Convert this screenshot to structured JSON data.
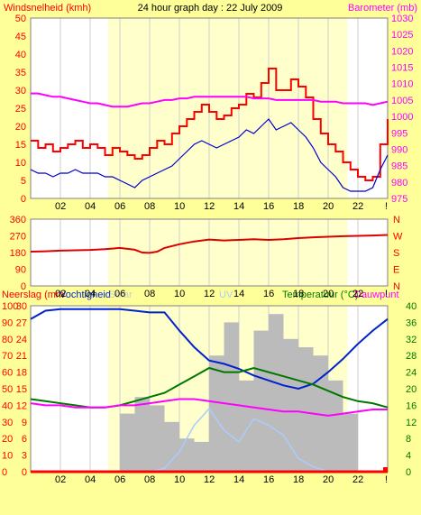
{
  "header": {
    "left": "Windsnelheid (kmh)",
    "center": "24 hour graph day : 22 July 2009",
    "right": "Barometer (mb)"
  },
  "colors": {
    "background": "#ffff99",
    "plot_bg": "#ffffff",
    "day_band": "#ffffcc",
    "grid": "#cfcfcf",
    "wind_gust": "#ff0000",
    "wind_avg": "#0000cc",
    "barometer": "#ff00ff",
    "direction": "#dd0000",
    "humidity": "#0022cc",
    "temperature": "#007700",
    "dewpoint": "#ff00ff",
    "solar": "#bbbbbb",
    "uv": "#aaccff",
    "rain": "#ff0000",
    "left_axis_red": "#ff0000",
    "right_axis_magenta": "#ff00ff",
    "right_axis_green": "#007700"
  },
  "x_tick_labels": [
    "02",
    "04",
    "06",
    "08",
    "10",
    "12",
    "14",
    "16",
    "18",
    "20",
    "22",
    "!"
  ],
  "chart_data": [
    {
      "id": "wind_barometer",
      "type": "line",
      "y_left_ticks": [
        "0",
        "5",
        "10",
        "15",
        "20",
        "25",
        "30",
        "35",
        "40",
        "45",
        "50"
      ],
      "y_right_ticks": [
        "975",
        "980",
        "985",
        "990",
        "995",
        "1000",
        "1005",
        "1010",
        "1015",
        "1020",
        "1025",
        "1030"
      ],
      "ylim_left": [
        0,
        50
      ],
      "ylim_right": [
        975,
        1030
      ],
      "x": [
        0,
        0.5,
        1,
        1.5,
        2,
        2.5,
        3,
        3.5,
        4,
        4.5,
        5,
        5.5,
        6,
        6.5,
        7,
        7.5,
        8,
        8.5,
        9,
        9.5,
        10,
        10.5,
        11,
        11.5,
        12,
        12.5,
        13,
        13.5,
        14,
        14.5,
        15,
        15.5,
        16,
        16.5,
        17,
        17.5,
        18,
        18.5,
        19,
        19.5,
        20,
        20.5,
        21,
        21.5,
        22,
        22.5,
        23,
        23.5,
        24
      ],
      "series": [
        {
          "key": "gust",
          "values": [
            16,
            14,
            15,
            13,
            14,
            15,
            16,
            14,
            15,
            14,
            12,
            14,
            13,
            12,
            11,
            12,
            14,
            16,
            15,
            18,
            20,
            22,
            24,
            26,
            24,
            22,
            23,
            25,
            26,
            29,
            28,
            32,
            36,
            30,
            30,
            33,
            31,
            28,
            22,
            18,
            15,
            13,
            10,
            8,
            6,
            5,
            6,
            15,
            22
          ]
        },
        {
          "key": "avg",
          "values": [
            8,
            7,
            7,
            6,
            7,
            7,
            8,
            7,
            7,
            7,
            6,
            6,
            5,
            4,
            3,
            5,
            6,
            7,
            8,
            9,
            11,
            13,
            15,
            16,
            15,
            14,
            15,
            16,
            17,
            19,
            18,
            20,
            22,
            19,
            20,
            21,
            19,
            17,
            14,
            10,
            8,
            6,
            3,
            2,
            2,
            2,
            3,
            8,
            12
          ]
        },
        {
          "key": "barometer",
          "values": [
            1007,
            1007,
            1006.5,
            1006,
            1006,
            1005.5,
            1005,
            1004.5,
            1004,
            1004,
            1003.5,
            1003,
            1003,
            1003,
            1003.5,
            1004,
            1004,
            1004.5,
            1005,
            1005,
            1005.5,
            1005.5,
            1006,
            1006,
            1006,
            1006,
            1006,
            1006,
            1006,
            1006,
            1005.5,
            1005.5,
            1005.5,
            1005,
            1005,
            1005,
            1005,
            1005,
            1005,
            1004.5,
            1004.5,
            1004.5,
            1004,
            1004,
            1004,
            1004,
            1003.5,
            1004,
            1004.5
          ]
        }
      ]
    },
    {
      "id": "wind_direction",
      "type": "line",
      "y_left_ticks": [
        "0",
        "90",
        "180",
        "270",
        "360"
      ],
      "y_right_ticks": [
        "N",
        "E",
        "S",
        "W",
        "N"
      ],
      "ylim": [
        0,
        360
      ],
      "x": [
        0,
        1,
        2,
        3,
        4,
        5,
        6,
        7,
        7.5,
        8,
        8.5,
        9,
        10,
        11,
        12,
        13,
        14,
        15,
        16,
        17,
        18,
        19,
        20,
        21,
        22,
        23,
        24
      ],
      "series": [
        {
          "key": "direction",
          "values": [
            185,
            187,
            190,
            192,
            194,
            198,
            205,
            195,
            180,
            178,
            185,
            205,
            225,
            240,
            250,
            245,
            248,
            252,
            248,
            252,
            258,
            262,
            265,
            268,
            270,
            272,
            275
          ]
        }
      ]
    },
    {
      "id": "rain_hum_temp",
      "type": "line",
      "labels": {
        "rain": "Neerslag (mm",
        "humidity": "Vochtigheid",
        "solar": "Solar",
        "uv": "UV",
        "temp": "Temperatuur (°C)",
        "dew": "Dauwpunt"
      },
      "y_hum_ticks": [
        "0",
        "10",
        "20",
        "30",
        "40",
        "50",
        "60",
        "70",
        "80",
        "90",
        "100"
      ],
      "y_rain_ticks": [
        "0",
        "3",
        "6",
        "9",
        "12",
        "15",
        "18",
        "21",
        "24",
        "27",
        "30"
      ],
      "y_temp_ticks": [
        "0",
        "4",
        "8",
        "12",
        "16",
        "20",
        "24",
        "28",
        "32",
        "36",
        "40"
      ],
      "ylim_humidity": [
        0,
        100
      ],
      "ylim_temp": [
        0,
        40
      ],
      "x": [
        0,
        1,
        2,
        3,
        4,
        5,
        6,
        7,
        8,
        9,
        10,
        11,
        12,
        13,
        14,
        15,
        16,
        17,
        18,
        19,
        20,
        21,
        22,
        23,
        24
      ],
      "series": [
        {
          "key": "humidity",
          "values": [
            92,
            97,
            98,
            98,
            98,
            98,
            98,
            97,
            96,
            96,
            85,
            75,
            67,
            65,
            62,
            58,
            55,
            52,
            50,
            53,
            60,
            68,
            77,
            85,
            92
          ]
        },
        {
          "key": "temperature",
          "values": [
            17.5,
            17,
            16.5,
            16,
            15.5,
            15.5,
            16,
            17,
            18,
            19,
            21,
            23,
            25,
            24,
            24,
            25,
            24,
            23,
            22,
            21,
            19.5,
            18,
            17,
            16.5,
            15.5
          ]
        },
        {
          "key": "dewpoint",
          "values": [
            16.5,
            16,
            16,
            15.5,
            15.5,
            15.5,
            16,
            16,
            16.5,
            17,
            17.5,
            17.5,
            17,
            16.5,
            16,
            15.5,
            15,
            14.5,
            14.5,
            14,
            13.5,
            14,
            14.5,
            15,
            15
          ]
        },
        {
          "key": "solar",
          "values": [
            0,
            0,
            0,
            0,
            0,
            0,
            35,
            45,
            40,
            30,
            20,
            18,
            70,
            90,
            55,
            85,
            95,
            80,
            75,
            70,
            55,
            35,
            0,
            0,
            0
          ]
        },
        {
          "key": "uv",
          "values": [
            0,
            0,
            0,
            0,
            0,
            0,
            0,
            0,
            0,
            2,
            12,
            28,
            38,
            25,
            18,
            32,
            28,
            22,
            8,
            3,
            0,
            0,
            0,
            0,
            0
          ]
        },
        {
          "key": "rain",
          "values": [
            0,
            0,
            0,
            0,
            0,
            0,
            0,
            0,
            0,
            0,
            0,
            0,
            0,
            0,
            0,
            0,
            0,
            0,
            0,
            0,
            0,
            0,
            0,
            0,
            0
          ]
        }
      ]
    }
  ]
}
